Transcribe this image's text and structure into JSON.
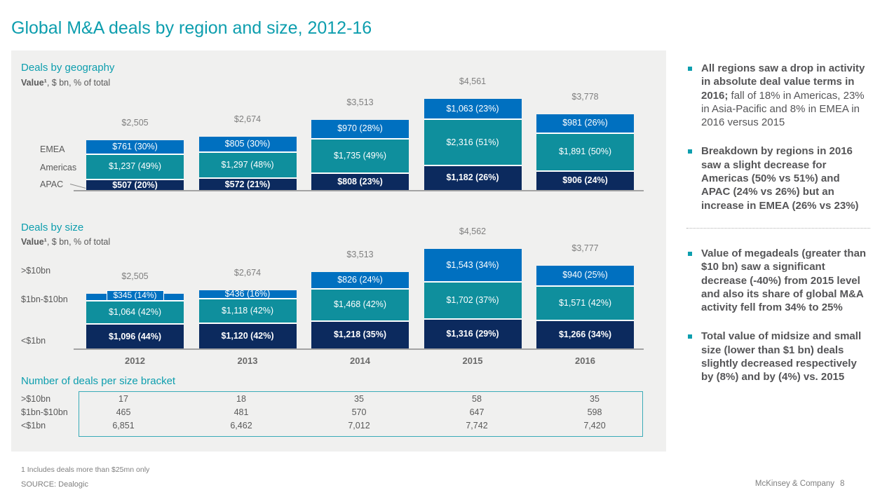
{
  "page": {
    "title": "Global M&A deals by region and size, 2012-16",
    "footnote": "1 Includes deals more than $25mn only",
    "source": "SOURCE: Dealogic",
    "footer_brand": "McKinsey & Company",
    "page_number": "8"
  },
  "colors": {
    "accent_teal": "#0d9eae",
    "segment_blue": "#0070c0",
    "segment_teal": "#0f8f9d",
    "segment_navy": "#0c2a5e",
    "panel_background": "#f0f0ef",
    "table_border": "#3aabb8"
  },
  "chart_data": [
    {
      "type": "stacked-bar",
      "id": "geography",
      "title": "Deals by geography",
      "subtitle_bold": "Value¹",
      "subtitle_rest": ", $ bn, % of total",
      "categories": [
        "2012",
        "2013",
        "2014",
        "2015",
        "2016"
      ],
      "totals": [
        "$2,505",
        "$2,674",
        "$3,513",
        "$4,561",
        "$3,778"
      ],
      "totals_values": [
        2505,
        2674,
        3513,
        4561,
        3778
      ],
      "ylim": [
        0,
        4561
      ],
      "grid": false,
      "legend_position": "left",
      "series": [
        {
          "name": "EMEA",
          "color_key": "blue",
          "values": [
            761,
            805,
            970,
            1063,
            981
          ],
          "labels": [
            "$761 (30%)",
            "$805 (30%)",
            "$970 (28%)",
            "$1,063 (23%)",
            "$981 (26%)"
          ]
        },
        {
          "name": "Americas",
          "color_key": "teal",
          "values": [
            1237,
            1297,
            1735,
            2316,
            1891
          ],
          "labels": [
            "$1,237 (49%)",
            "$1,297 (48%)",
            "$1,735 (49%)",
            "$2,316 (51%)",
            "$1,891 (50%)"
          ]
        },
        {
          "name": "APAC",
          "color_key": "navy",
          "values": [
            507,
            572,
            808,
            1182,
            906
          ],
          "labels": [
            "$507 (20%)",
            "$572 (21%)",
            "$808 (23%)",
            "$1,182 (26%)",
            "$906 (24%)"
          ]
        }
      ]
    },
    {
      "type": "stacked-bar",
      "id": "size",
      "title": "Deals by size",
      "subtitle_bold": "Value¹",
      "subtitle_rest": ", $ bn, % of total",
      "categories": [
        "2012",
        "2013",
        "2014",
        "2015",
        "2016"
      ],
      "totals": [
        "$2,505",
        "$2,674",
        "$3,513",
        "$4,562",
        "$3,777"
      ],
      "totals_values": [
        2505,
        2674,
        3513,
        4562,
        3777
      ],
      "ylim": [
        0,
        4562
      ],
      "grid": false,
      "legend_position": "left",
      "show_year_axis_labels": true,
      "series": [
        {
          "name": ">$10bn",
          "color_key": "blue",
          "values": [
            345,
            436,
            826,
            1543,
            940
          ],
          "labels": [
            "$345 (14%)",
            "$436 (16%)",
            "$826 (24%)",
            "$1,543 (34%)",
            "$940 (25%)"
          ]
        },
        {
          "name": "$1bn-$10bn",
          "color_key": "teal",
          "values": [
            1064,
            1118,
            1468,
            1702,
            1571
          ],
          "labels": [
            "$1,064 (42%)",
            "$1,118 (42%)",
            "$1,468 (42%)",
            "$1,702 (37%)",
            "$1,571 (42%)"
          ]
        },
        {
          "name": "<$1bn",
          "color_key": "navy",
          "values": [
            1096,
            1120,
            1218,
            1316,
            1266
          ],
          "labels": [
            "$1,096 (44%)",
            "$1,120 (42%)",
            "$1,218 (35%)",
            "$1,316 (29%)",
            "$1,266 (34%)"
          ]
        }
      ]
    },
    {
      "type": "table",
      "id": "deal-counts",
      "title": "Number of deals per size bracket",
      "columns": [
        "2012",
        "2013",
        "2014",
        "2015",
        "2016"
      ],
      "rows": [
        {
          "label": ">$10bn",
          "values": [
            "17",
            "18",
            "35",
            "58",
            "35"
          ]
        },
        {
          "label": "$1bn-$10bn",
          "values": [
            "465",
            "481",
            "570",
            "647",
            "598"
          ]
        },
        {
          "label": "<$1bn",
          "values": [
            "6,851",
            "6,462",
            "7,012",
            "7,742",
            "7,420"
          ]
        }
      ]
    }
  ],
  "sidebar": {
    "bullets": [
      {
        "bold": "All regions saw a drop in activity in absolute deal value terms in 2016;",
        "rest": " fall of 18% in Americas, 23% in Asia-Pacific and 8% in EMEA in 2016 versus 2015"
      },
      {
        "bold": "Breakdown by regions in 2016 saw a slight decrease for Americas (50% vs 51%) and APAC (24% vs 26%) but an increase in EMEA (26% vs 23%)",
        "rest": ""
      },
      {
        "bold": "Value of megadeals (greater than $10 bn) saw a significant decrease (-40%) from 2015 level and also its share of global M&A activity fell from 34% to 25%",
        "rest": ""
      },
      {
        "bold": "Total value of midsize and small size (lower than $1 bn) deals slightly decreased respectively by (8%) and by (4%) vs. 2015",
        "rest": ""
      }
    ]
  }
}
